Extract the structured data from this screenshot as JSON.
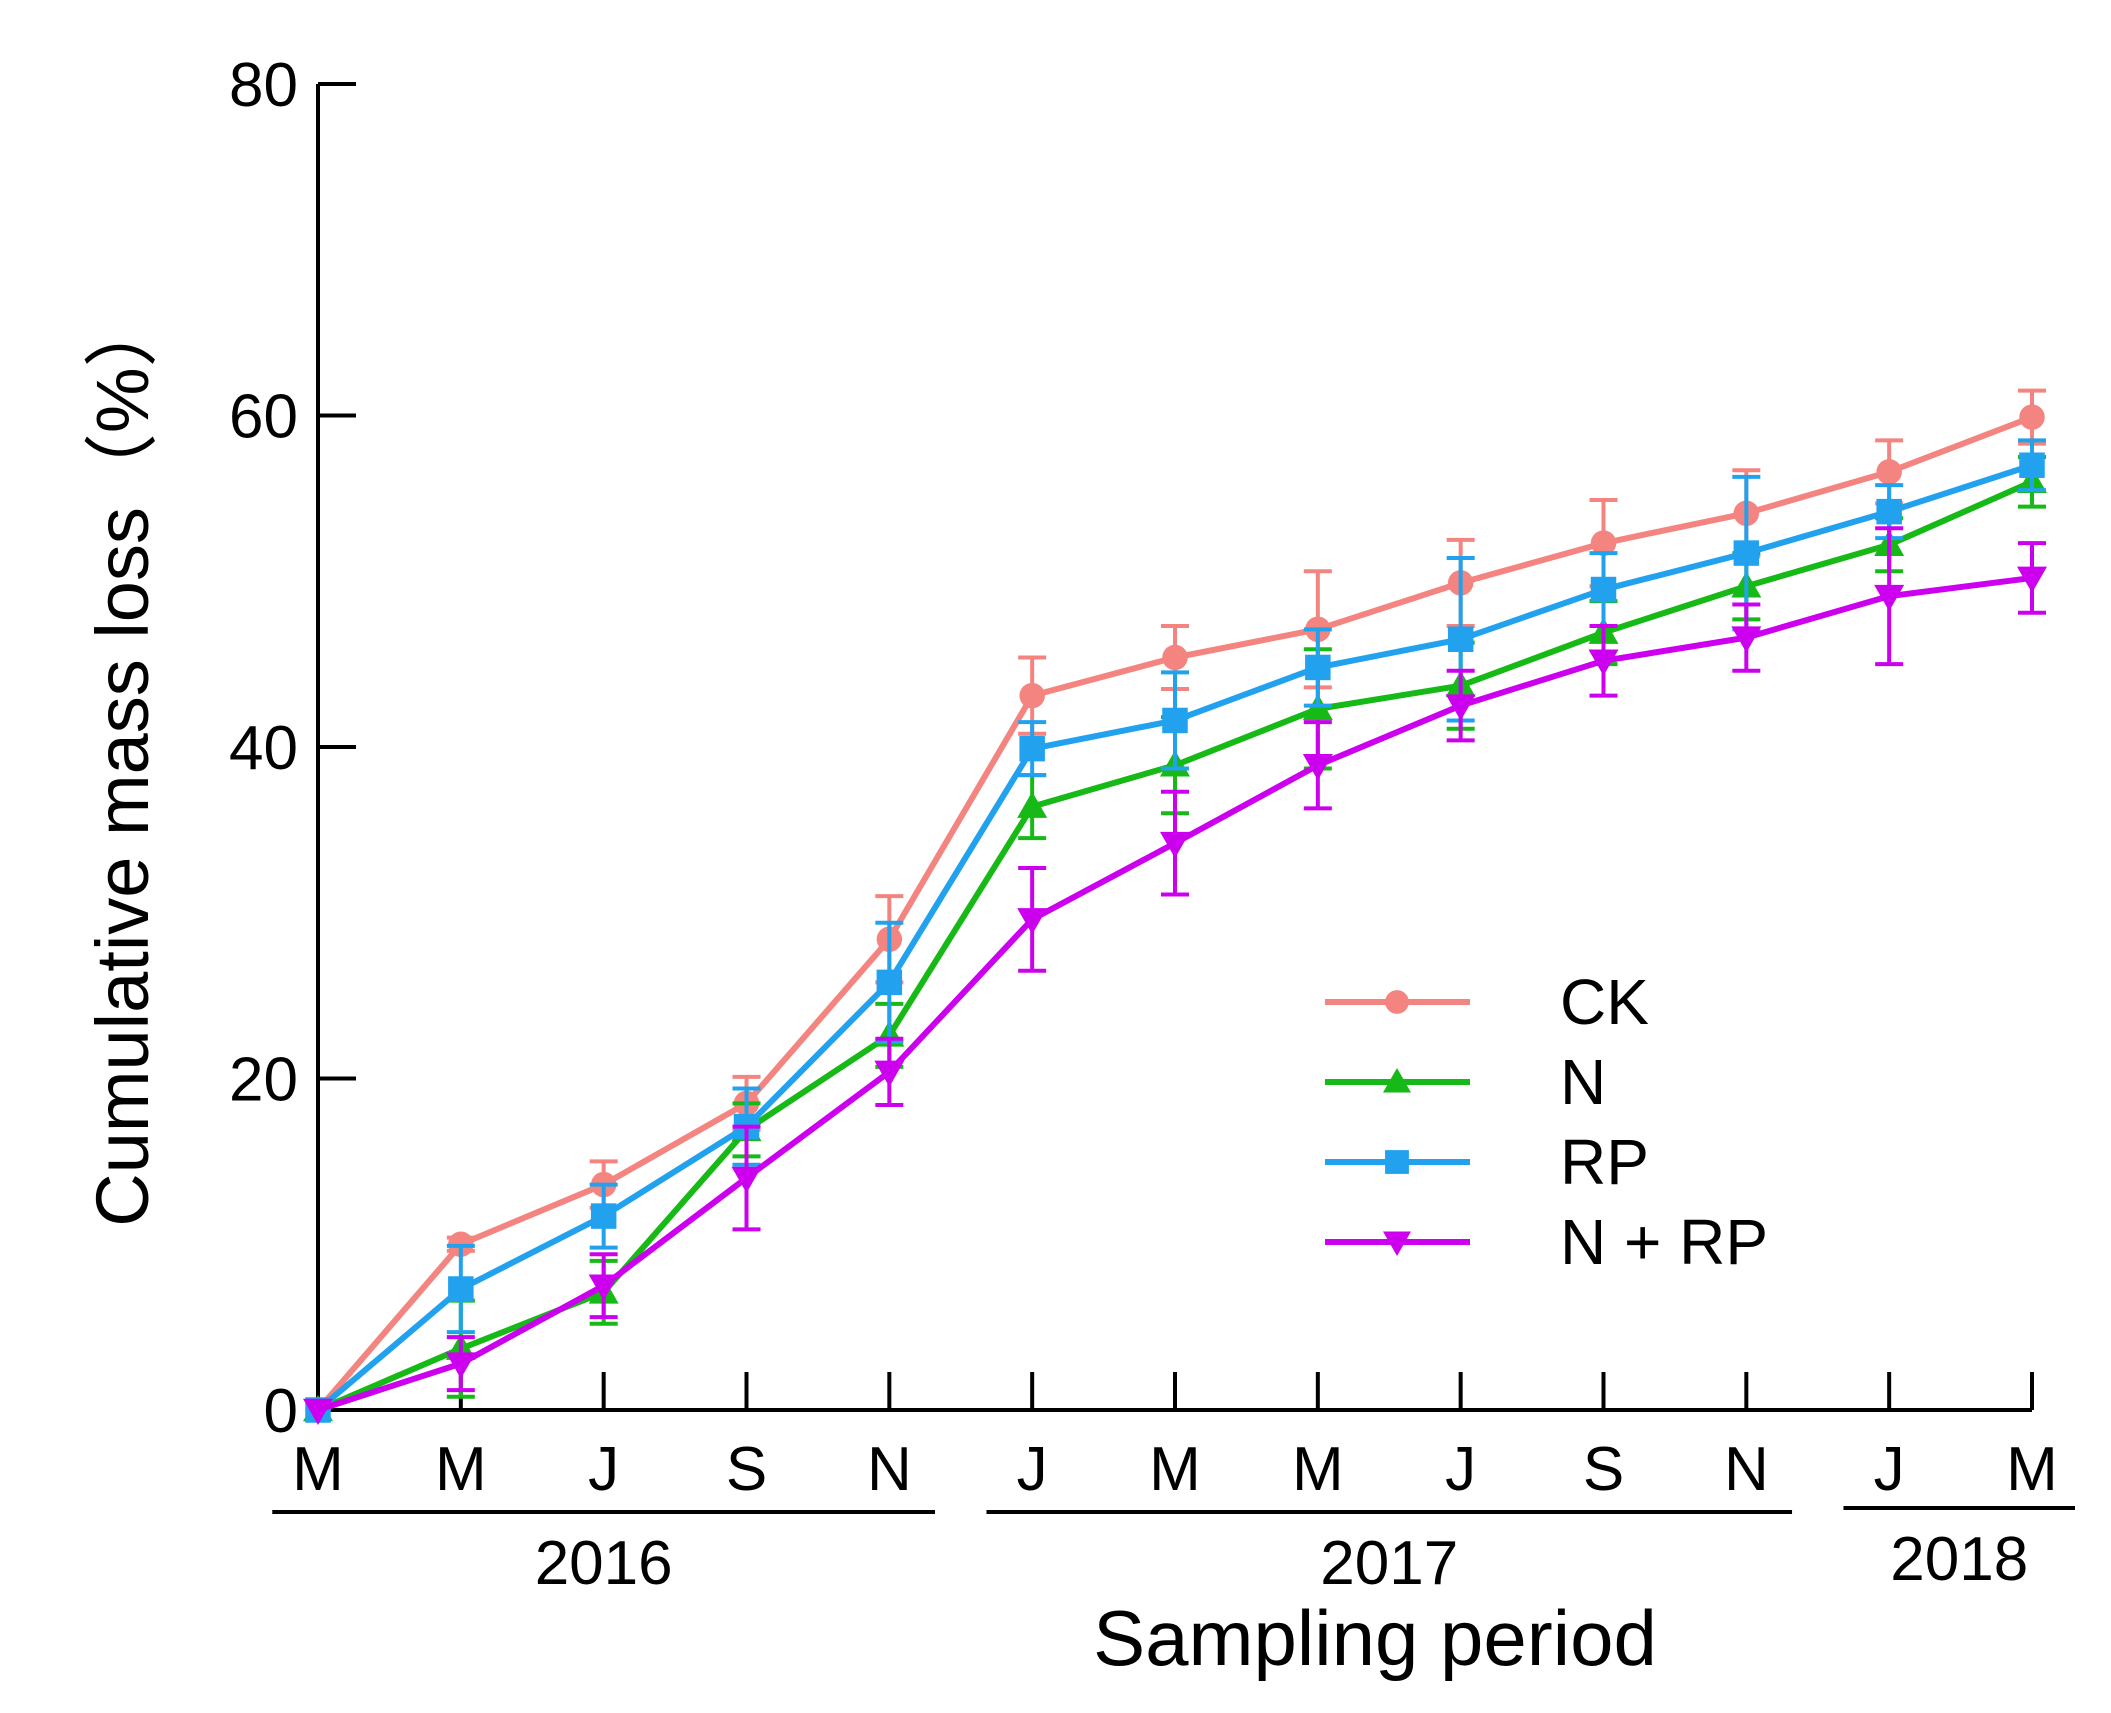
{
  "chart_data": {
    "type": "line",
    "ylabel": "Cumulative mass loss（%）",
    "xlabel": "Sampling period",
    "ylim": [
      0,
      80
    ],
    "yticks": [
      0,
      20,
      40,
      60,
      80
    ],
    "categories": [
      "M",
      "M",
      "J",
      "S",
      "N",
      "J",
      "M",
      "M",
      "J",
      "S",
      "N",
      "J",
      "M"
    ],
    "years": [
      {
        "label": "2016",
        "from": 0,
        "to": 4
      },
      {
        "label": "2017",
        "from": 5,
        "to": 10
      },
      {
        "label": "2018",
        "from": 11,
        "to": 12
      }
    ],
    "series": [
      {
        "name": "CK",
        "color": "#f4847f",
        "marker": "circle",
        "values": [
          0,
          10,
          13.6,
          18.5,
          28.4,
          43.1,
          45.4,
          47.1,
          49.9,
          52.3,
          54.1,
          56.6,
          59.9
        ],
        "errors": [
          0,
          0.4,
          1.4,
          1.6,
          2.6,
          2.3,
          1.9,
          3.5,
          2.6,
          2.6,
          2.6,
          1.9,
          1.6
        ]
      },
      {
        "name": "N",
        "color": "#16b916",
        "marker": "triangle-up",
        "values": [
          0,
          3.7,
          7.1,
          16.9,
          22.6,
          36.4,
          38.9,
          42.3,
          43.7,
          46.9,
          49.7,
          52.2,
          56.0
        ],
        "errors": [
          0,
          2.9,
          1.9,
          1.6,
          1.9,
          1.9,
          2.9,
          3.6,
          2.6,
          1.9,
          2.0,
          1.6,
          1.5
        ]
      },
      {
        "name": "RP",
        "color": "#22a2ee",
        "marker": "square",
        "values": [
          0,
          7.3,
          11.7,
          17.1,
          25.8,
          39.9,
          41.6,
          44.8,
          46.5,
          49.5,
          51.7,
          54.2,
          57.0
        ],
        "errors": [
          0,
          2.6,
          1.9,
          2.3,
          3.6,
          1.6,
          2.9,
          2.3,
          4.9,
          2.2,
          4.6,
          1.6,
          1.5
        ]
      },
      {
        "name": "N + RP",
        "color": "#cc00ee",
        "marker": "triangle-down",
        "values": [
          0,
          2.8,
          7.5,
          14.0,
          20.4,
          29.6,
          34.2,
          38.9,
          42.5,
          45.2,
          46.6,
          49.1,
          50.2
        ],
        "errors": [
          0,
          1.6,
          1.9,
          3.1,
          2.0,
          3.1,
          3.1,
          2.6,
          2.1,
          2.1,
          2.0,
          4.1,
          2.1
        ]
      }
    ]
  }
}
